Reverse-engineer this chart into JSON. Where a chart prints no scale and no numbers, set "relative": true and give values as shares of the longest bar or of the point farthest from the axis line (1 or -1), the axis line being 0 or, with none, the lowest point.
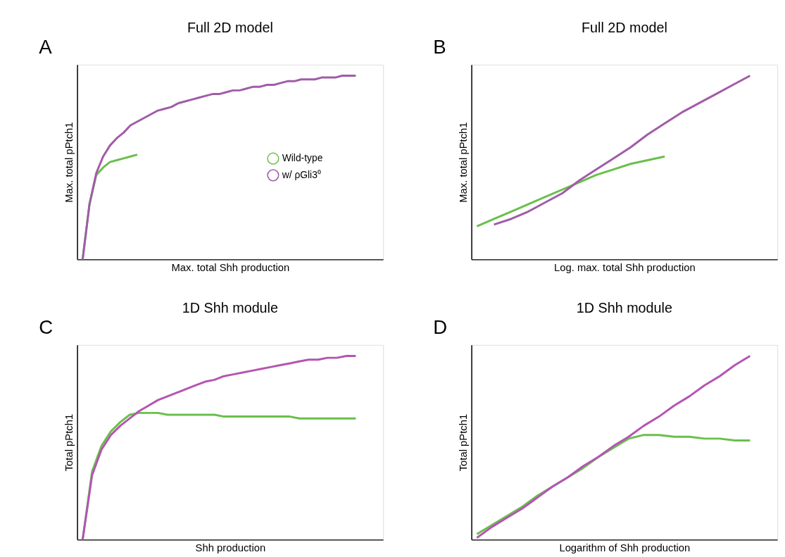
{
  "chart_data": [
    {
      "type": "line",
      "title": "Full 2D model",
      "annotations": [
        "A"
      ],
      "xlabel": "Max. total Shh production",
      "ylabel": "Max. total pPtch1",
      "relative": true,
      "grid": false,
      "legend": "right",
      "marker": "none",
      "line_style": "solid",
      "categories": [
        null,
        null,
        null,
        null,
        null,
        null,
        null,
        null,
        null,
        null,
        null,
        null,
        null,
        null,
        null,
        null,
        null,
        null,
        null,
        null,
        null,
        null,
        null,
        null,
        null,
        null,
        null,
        null,
        null,
        null,
        null,
        null,
        null,
        null,
        null,
        null,
        null,
        null,
        null,
        null,
        null
      ],
      "series": [
        {
          "name": "Wild-type",
          "color": "#6abf4b",
          "values": [
            0.0,
            0.3,
            0.46,
            0.5,
            0.53,
            0.54,
            0.55,
            0.56,
            0.57,
            null,
            null,
            null,
            null,
            null,
            null,
            null,
            null,
            null,
            null,
            null,
            null,
            null,
            null,
            null,
            null,
            null,
            null,
            null,
            null,
            null,
            null,
            null,
            null,
            null,
            null,
            null,
            null,
            null,
            null,
            null,
            null
          ]
        },
        {
          "name": "w/ ρGli3⁰",
          "color": "#a05ca8",
          "values": [
            0.0,
            0.3,
            0.47,
            0.56,
            0.62,
            0.66,
            0.69,
            0.73,
            0.75,
            0.77,
            0.79,
            0.81,
            0.82,
            0.83,
            0.85,
            0.86,
            0.87,
            0.88,
            0.89,
            0.9,
            0.9,
            0.91,
            0.92,
            0.92,
            0.93,
            0.94,
            0.94,
            0.95,
            0.95,
            0.96,
            0.97,
            0.97,
            0.98,
            0.98,
            0.98,
            0.99,
            0.99,
            0.99,
            1.0,
            1.0,
            1.0
          ]
        }
      ]
    },
    {
      "type": "line",
      "title": "Full 2D model",
      "annotations": [
        "B"
      ],
      "xlabel": "Log. max. total Shh production",
      "ylabel": "Max. total pPtch1",
      "relative": true,
      "grid": false,
      "legend": false,
      "marker": "none",
      "line_style": "solid",
      "categories": [
        null,
        null,
        null,
        null,
        null,
        null,
        null,
        null,
        null,
        null,
        null,
        null,
        null,
        null,
        null,
        null,
        null
      ],
      "series": [
        {
          "color": "#6abf4b",
          "values": [
            0.18,
            0.22,
            0.26,
            0.3,
            0.34,
            0.38,
            0.42,
            0.46,
            0.49,
            0.52,
            0.54,
            0.56,
            null,
            null,
            null,
            null,
            null
          ]
        },
        {
          "color": "#a05ca8",
          "values": [
            null,
            0.19,
            0.22,
            0.26,
            0.31,
            0.36,
            0.43,
            0.49,
            0.55,
            0.61,
            0.68,
            0.74,
            0.8,
            0.85,
            0.9,
            0.95,
            1.0
          ]
        }
      ]
    },
    {
      "type": "line",
      "title": "1D Shh module",
      "annotations": [
        "C"
      ],
      "xlabel": "Shh production",
      "ylabel": "Total pPtch1",
      "relative": true,
      "grid": false,
      "legend": false,
      "marker": "none",
      "line_style": "solid",
      "categories": [
        null,
        null,
        null,
        null,
        null,
        null,
        null,
        null,
        null,
        null,
        null,
        null,
        null,
        null,
        null,
        null,
        null,
        null,
        null,
        null,
        null,
        null,
        null,
        null,
        null,
        null,
        null,
        null,
        null,
        null
      ],
      "series": [
        {
          "color": "#6abf4b",
          "values": [
            0.0,
            0.37,
            0.51,
            0.59,
            0.64,
            0.68,
            0.69,
            0.69,
            0.69,
            0.68,
            0.68,
            0.68,
            0.68,
            0.68,
            0.68,
            0.67,
            0.67,
            0.67,
            0.67,
            0.67,
            0.67,
            0.67,
            0.67,
            0.66,
            0.66,
            0.66,
            0.66,
            0.66,
            0.66,
            0.66
          ]
        },
        {
          "color": "#b455b2",
          "values": [
            0.0,
            0.35,
            0.49,
            0.57,
            0.62,
            0.66,
            0.7,
            0.73,
            0.76,
            0.78,
            0.8,
            0.82,
            0.84,
            0.86,
            0.87,
            0.89,
            0.9,
            0.91,
            0.92,
            0.93,
            0.94,
            0.95,
            0.96,
            0.97,
            0.98,
            0.98,
            0.99,
            0.99,
            1.0,
            1.0
          ]
        }
      ]
    },
    {
      "type": "line",
      "title": "1D Shh module",
      "annotations": [
        "D"
      ],
      "xlabel": "Logarithm of Shh production",
      "ylabel": "Total pPtch1",
      "relative": true,
      "grid": false,
      "legend": false,
      "marker": "none",
      "line_style": "solid",
      "categories": [
        null,
        null,
        null,
        null,
        null,
        null,
        null,
        null,
        null,
        null,
        null,
        null,
        null,
        null,
        null,
        null,
        null,
        null,
        null
      ],
      "series": [
        {
          "color": "#6abf4b",
          "values": [
            0.03,
            0.08,
            0.13,
            0.18,
            0.24,
            0.29,
            0.34,
            0.39,
            0.45,
            0.5,
            0.55,
            0.57,
            0.57,
            0.56,
            0.56,
            0.55,
            0.55,
            0.54,
            0.54
          ]
        },
        {
          "color": "#b455b2",
          "values": [
            0.01,
            0.07,
            0.12,
            0.17,
            0.23,
            0.29,
            0.34,
            0.4,
            0.45,
            0.51,
            0.56,
            0.62,
            0.67,
            0.73,
            0.78,
            0.84,
            0.89,
            0.95,
            1.0
          ]
        }
      ]
    }
  ]
}
